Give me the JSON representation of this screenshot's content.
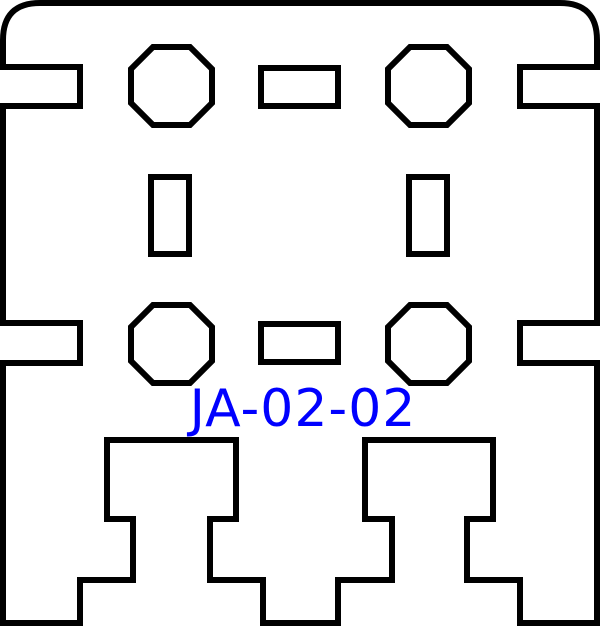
{
  "drawing": {
    "part_label": "JA-02-02",
    "colors": {
      "outline": "#000000",
      "label": "#0000ff",
      "background": "#ffffff"
    }
  }
}
